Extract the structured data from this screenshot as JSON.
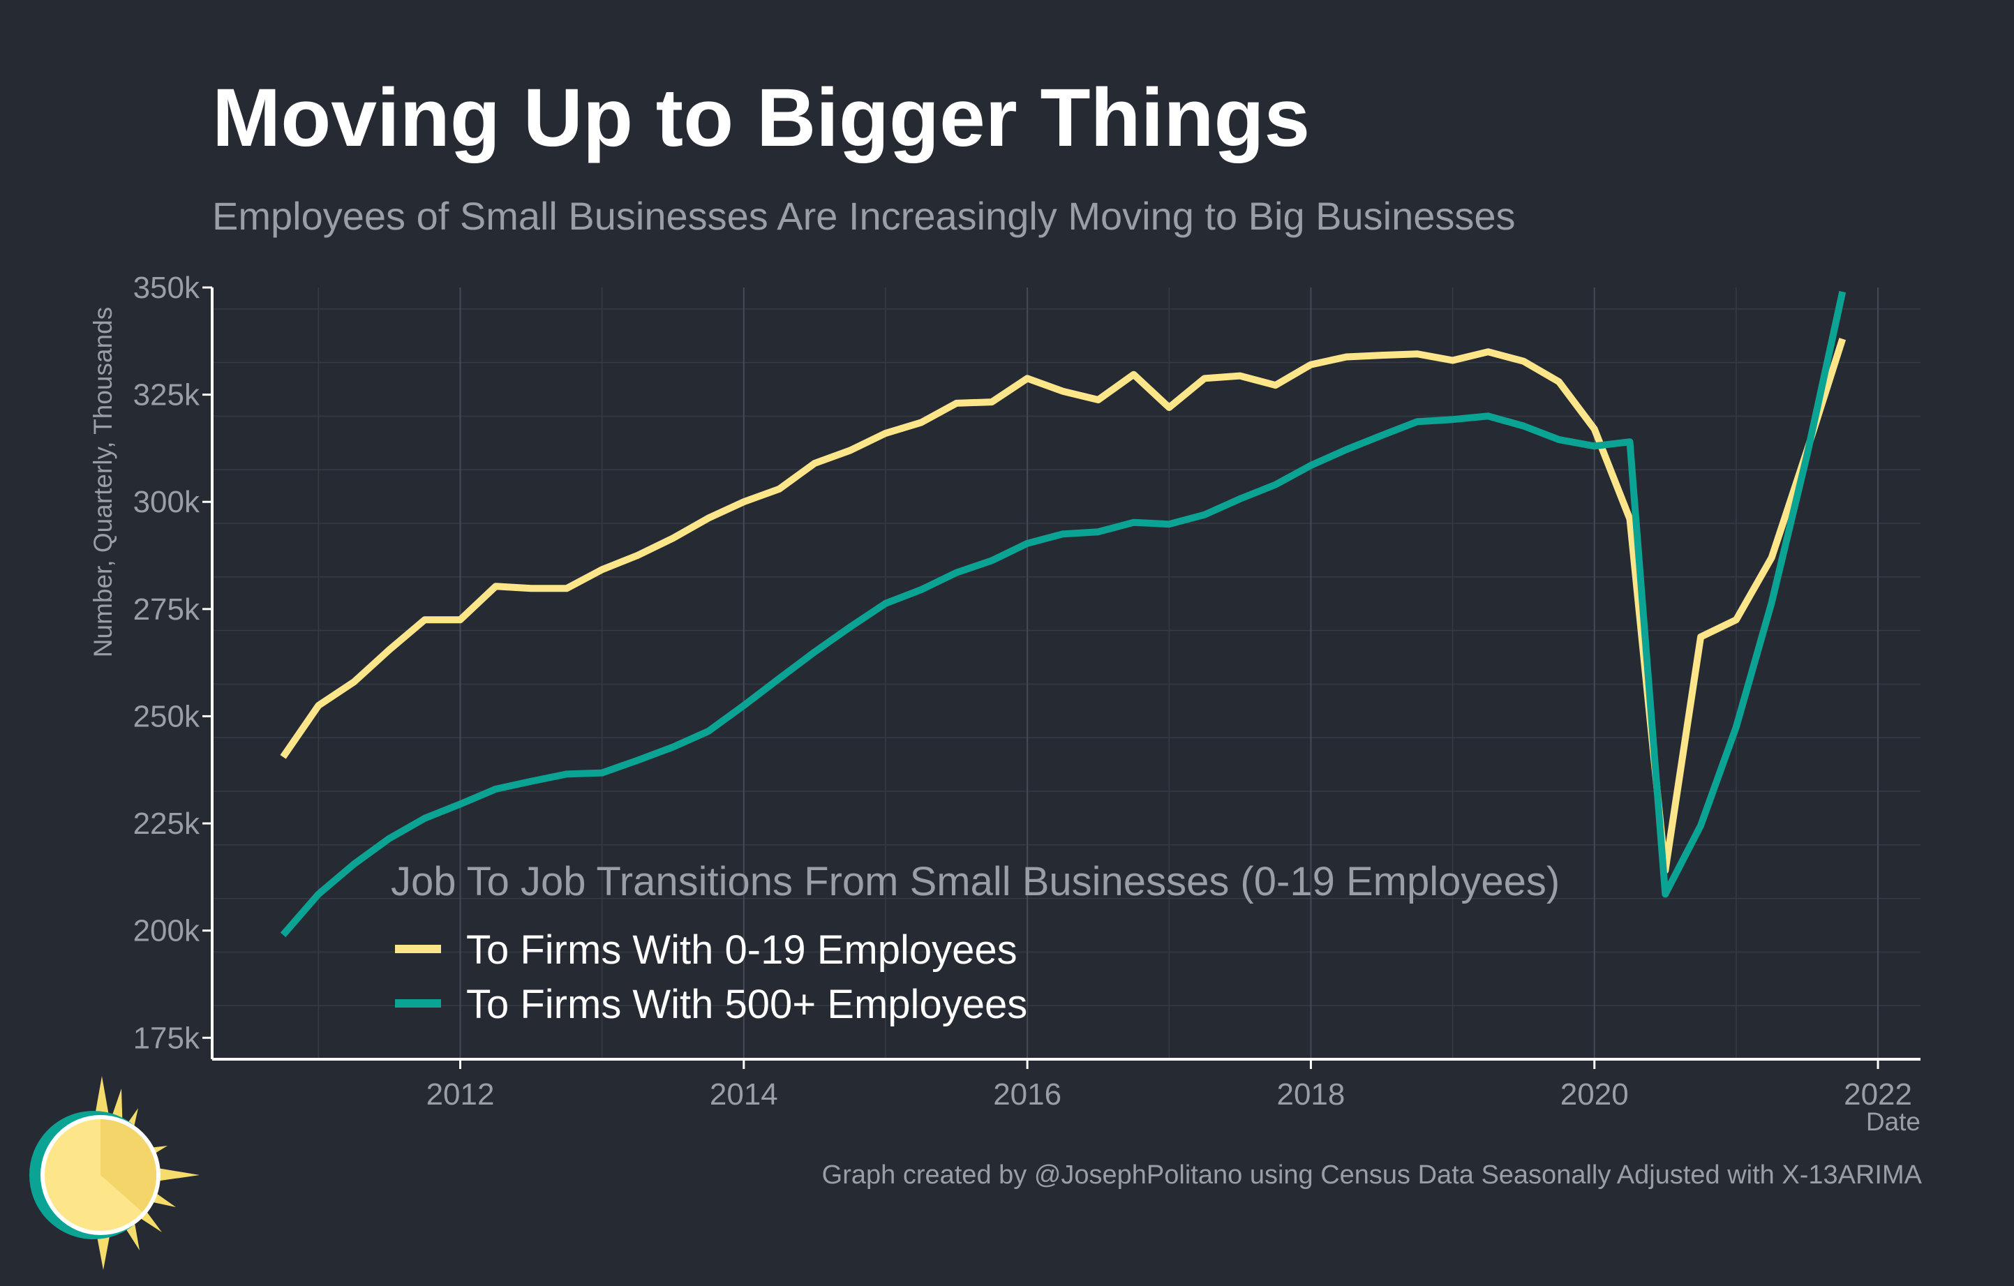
{
  "header": {
    "title": "Moving Up to Bigger Things",
    "subtitle": "Employees of Small Businesses Are Increasingly Moving to Big Businesses"
  },
  "footer": {
    "caption": "Graph created by @JosephPolitano using Census Data Seasonally Adjusted with X-13ARIMA",
    "logo_icon": "sun-logo-icon"
  },
  "colors": {
    "background": "#252a33",
    "series_small": "#fde68a",
    "series_large": "#0aa394"
  },
  "chart_data": {
    "type": "line",
    "title": "Moving Up to Bigger Things",
    "subtitle": "Employees of Small Businesses Are Increasingly Moving to Big Businesses",
    "xlabel": "Date",
    "ylabel": "Number, Quarterly, Thousands",
    "xlim": [
      2010.25,
      2022.3
    ],
    "ylim": [
      170,
      350
    ],
    "x_ticks": [
      2012,
      2014,
      2016,
      2018,
      2020,
      2022
    ],
    "x_tick_labels": [
      "2012",
      "2014",
      "2016",
      "2018",
      "2020",
      "2022"
    ],
    "y_ticks": [
      175,
      200,
      225,
      250,
      275,
      300,
      325,
      350
    ],
    "y_tick_labels": [
      "175k",
      "200k",
      "225k",
      "250k",
      "275k",
      "300k",
      "325k",
      "350k"
    ],
    "grid": true,
    "legend": {
      "title": "Job To Job Transitions From Small Businesses (0-19 Employees)",
      "placement": "bottom-left"
    },
    "x": [
      2010.75,
      2011.0,
      2011.25,
      2011.5,
      2011.75,
      2012.0,
      2012.25,
      2012.5,
      2012.75,
      2013.0,
      2013.25,
      2013.5,
      2013.75,
      2014.0,
      2014.25,
      2014.5,
      2014.75,
      2015.0,
      2015.25,
      2015.5,
      2015.75,
      2016.0,
      2016.25,
      2016.5,
      2016.75,
      2017.0,
      2017.25,
      2017.5,
      2017.75,
      2018.0,
      2018.25,
      2018.5,
      2018.75,
      2019.0,
      2019.25,
      2019.5,
      2019.75,
      2020.0,
      2020.25,
      2020.5,
      2020.75,
      2021.0,
      2021.25,
      2021.5,
      2021.75
    ],
    "series": [
      {
        "name": "To Firms With 0-19 Employees",
        "color": "#fde68a",
        "values": [
          240.5,
          252.5,
          258,
          265.5,
          272.5,
          272.5,
          280.3,
          279.8,
          279.8,
          284.2,
          287.5,
          291.5,
          296.2,
          300,
          303,
          309,
          312,
          316,
          318.5,
          323,
          323.3,
          328.8,
          325.8,
          323.8,
          329.7,
          322,
          328.8,
          329.4,
          327.2,
          332,
          333.8,
          334.2,
          334.5,
          333,
          335,
          332.8,
          328,
          317,
          296,
          214,
          268.5,
          272.5,
          287,
          312,
          338
        ]
      },
      {
        "name": "To Firms With 500+ Employees",
        "color": "#0aa394",
        "values": [
          199,
          208.5,
          215.5,
          221.5,
          226.2,
          229.5,
          233,
          234.8,
          236.5,
          236.8,
          239.7,
          242.8,
          246.5,
          252.5,
          258.8,
          265,
          270.8,
          276.3,
          279.5,
          283.5,
          286.3,
          290.3,
          292.5,
          293,
          295.2,
          294.8,
          297,
          300.7,
          304,
          308.5,
          312.2,
          315.5,
          318.7,
          319.2,
          320,
          317.7,
          314.5,
          313,
          314,
          208.5,
          224.5,
          247.5,
          276.5,
          311,
          349
        ]
      }
    ]
  }
}
